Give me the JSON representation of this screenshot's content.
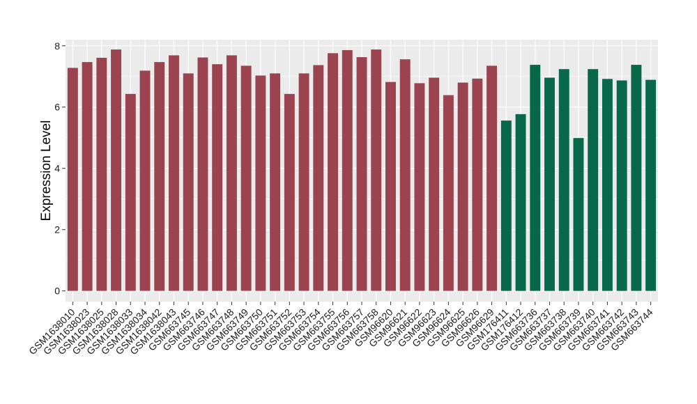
{
  "chart_data": {
    "type": "bar",
    "title": "",
    "xlabel": "",
    "ylabel": "Expression Level",
    "ylim": [
      0,
      8.2
    ],
    "yticks": [
      0,
      2,
      4,
      6,
      8
    ],
    "grid": true,
    "legend": "none",
    "colors": {
      "group_a": "#9B4450",
      "group_b": "#07694A",
      "panel": "#EBEBEB",
      "gridline": "#FFFFFF"
    },
    "categories": [
      "GSM1638010",
      "GSM1638023",
      "GSM1638025",
      "GSM1638028",
      "GSM1638033",
      "GSM1638034",
      "GSM1638042",
      "GSM1638043",
      "GSM663745",
      "GSM663746",
      "GSM663747",
      "GSM663748",
      "GSM663749",
      "GSM663750",
      "GSM663751",
      "GSM663752",
      "GSM663753",
      "GSM663754",
      "GSM663755",
      "GSM663756",
      "GSM663757",
      "GSM663758",
      "GSM96620",
      "GSM96621",
      "GSM96622",
      "GSM96623",
      "GSM96624",
      "GSM96625",
      "GSM96626",
      "GSM96629",
      "GSM176411",
      "GSM176412",
      "GSM663736",
      "GSM663737",
      "GSM663738",
      "GSM663739",
      "GSM663740",
      "GSM663741",
      "GSM663742",
      "GSM663743",
      "GSM663744"
    ],
    "values": [
      7.28,
      7.47,
      7.61,
      7.88,
      6.43,
      7.19,
      7.47,
      7.69,
      7.1,
      7.62,
      7.4,
      7.69,
      7.35,
      7.03,
      7.1,
      6.43,
      7.1,
      7.37,
      7.76,
      7.86,
      7.63,
      7.88,
      6.82,
      7.56,
      6.78,
      6.96,
      6.39,
      6.8,
      6.93,
      7.35,
      5.56,
      5.77,
      7.38,
      6.96,
      7.24,
      4.99,
      7.24,
      6.92,
      6.87,
      7.38,
      6.89
    ],
    "groups": [
      "a",
      "a",
      "a",
      "a",
      "a",
      "a",
      "a",
      "a",
      "a",
      "a",
      "a",
      "a",
      "a",
      "a",
      "a",
      "a",
      "a",
      "a",
      "a",
      "a",
      "a",
      "a",
      "a",
      "a",
      "a",
      "a",
      "a",
      "a",
      "a",
      "a",
      "b",
      "b",
      "b",
      "b",
      "b",
      "b",
      "b",
      "b",
      "b",
      "b",
      "b"
    ]
  }
}
